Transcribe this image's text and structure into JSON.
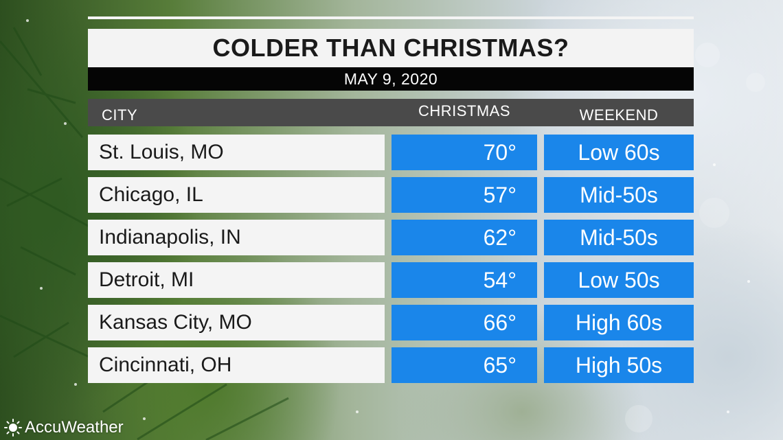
{
  "title": "COLDER THAN CHRISTMAS?",
  "date": "MAY 9, 2020",
  "headers": {
    "city": "CITY",
    "christmas": "CHRISTMAS",
    "weekend": "WEEKEND"
  },
  "rows": [
    {
      "city": "St. Louis, MO",
      "christmas": "70°",
      "weekend": "Low 60s"
    },
    {
      "city": "Chicago, IL",
      "christmas": "57°",
      "weekend": "Mid-50s"
    },
    {
      "city": "Indianapolis, IN",
      "christmas": "62°",
      "weekend": "Mid-50s"
    },
    {
      "city": "Detroit, MI",
      "christmas": "54°",
      "weekend": "Low 50s"
    },
    {
      "city": "Kansas City, MO",
      "christmas": "66°",
      "weekend": "High 60s"
    },
    {
      "city": "Cincinnati, OH",
      "christmas": "65°",
      "weekend": "High 50s"
    }
  ],
  "logo": {
    "text": "AccuWeather",
    "icon": "sun-icon"
  },
  "colors": {
    "value_cell": "#1a86ea",
    "header_bar": "#4a4a4a",
    "date_bar": "#050505",
    "title_bar": "#f3f3f3"
  }
}
